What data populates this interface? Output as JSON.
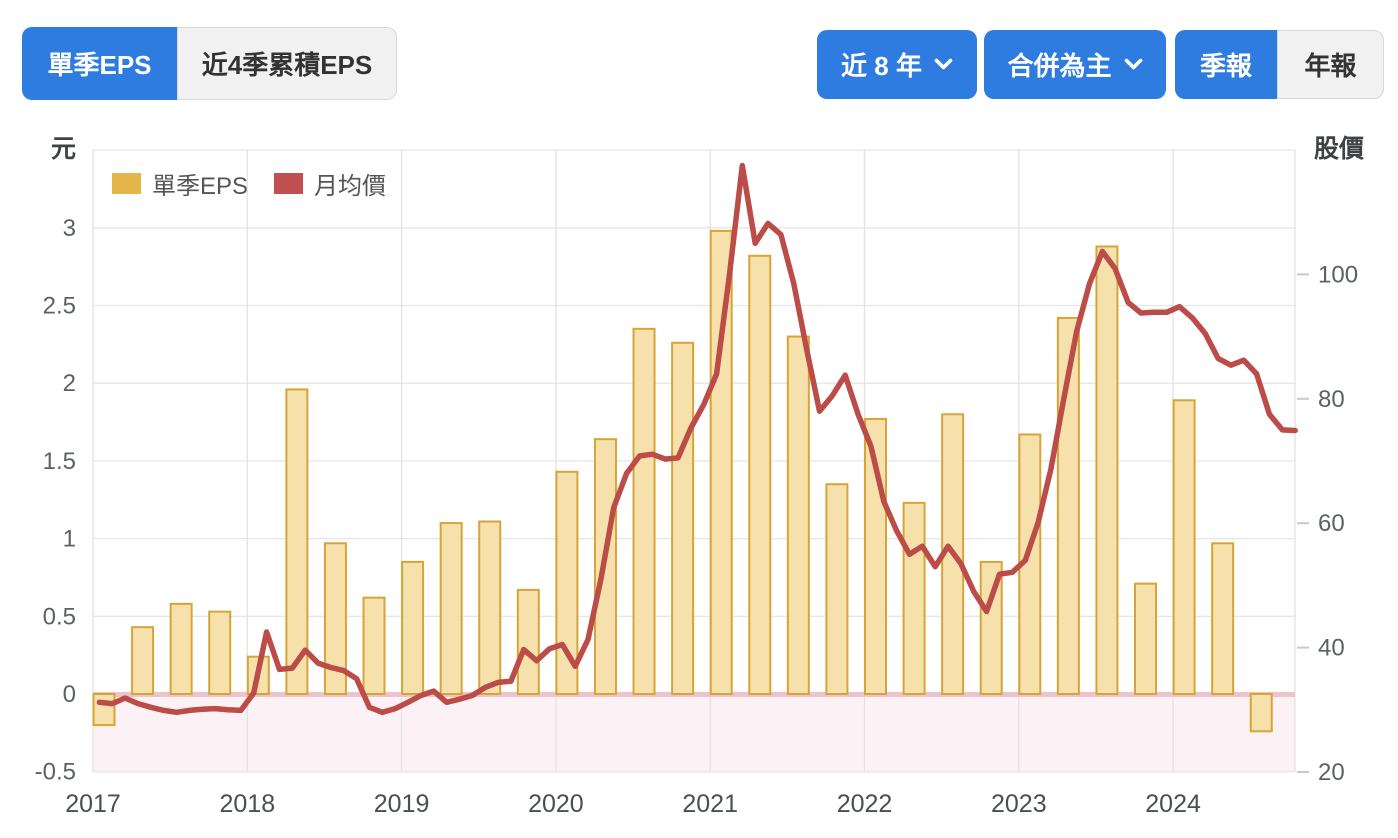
{
  "toolbar": {
    "eps_tab": "單季EPS",
    "cumulative_eps_tab": "近4季累積EPS",
    "range_select": "近 8 年",
    "statement_select": "合併為主",
    "quarterly_tab": "季報",
    "annual_tab": "年報"
  },
  "legend": {
    "bar_label": "單季EPS",
    "line_label": "月均價"
  },
  "axes": {
    "left_unit": "元",
    "right_unit": "股價",
    "left_ticks": [
      3,
      2.5,
      2,
      1.5,
      1,
      0.5,
      0,
      -0.5
    ],
    "right_ticks": [
      100,
      80,
      60,
      40,
      20
    ],
    "x_ticks": [
      "2017",
      "2018",
      "2019",
      "2020",
      "2021",
      "2022",
      "2023",
      "2024"
    ]
  },
  "colors": {
    "accent_blue": "#2e7ce0",
    "bar_fill": "#f6e1ad",
    "bar_border": "#d7a437",
    "line_red": "#bc4c48",
    "zero_line_pink": "#efc3cd",
    "negative_area_pink": "#fcf2f6",
    "grid": "#e6e6e6",
    "tick_text": "#5c6166"
  },
  "chart_data": [
    {
      "type": "bar",
      "name": "單季EPS",
      "yaxis": "left",
      "unit": "元",
      "ylim": [
        -0.5,
        3.5
      ],
      "categories": [
        "2017Q1",
        "2017Q2",
        "2017Q3",
        "2017Q4",
        "2018Q1",
        "2018Q2",
        "2018Q3",
        "2018Q4",
        "2019Q1",
        "2019Q2",
        "2019Q3",
        "2019Q4",
        "2020Q1",
        "2020Q2",
        "2020Q3",
        "2020Q4",
        "2021Q1",
        "2021Q2",
        "2021Q3",
        "2021Q4",
        "2022Q1",
        "2022Q2",
        "2022Q3",
        "2022Q4",
        "2023Q1",
        "2023Q2",
        "2023Q3",
        "2023Q4",
        "2024Q1",
        "2024Q2",
        "2024Q3"
      ],
      "values": [
        -0.2,
        0.43,
        0.58,
        0.53,
        0.24,
        1.96,
        0.97,
        0.62,
        0.85,
        1.1,
        1.11,
        0.67,
        1.43,
        1.64,
        2.35,
        2.26,
        2.98,
        2.82,
        2.3,
        1.35,
        1.77,
        1.23,
        1.8,
        0.85,
        1.67,
        2.42,
        2.88,
        0.71,
        1.89,
        0.97,
        -0.24
      ]
    },
    {
      "type": "line",
      "name": "月均價",
      "yaxis": "right",
      "unit": "股價",
      "ylim": [
        20,
        120
      ],
      "interval": "month",
      "x_start": "2017-01",
      "x_end": "2024-10",
      "values": [
        31.2,
        31.0,
        31.9,
        31.0,
        30.4,
        29.9,
        29.6,
        29.9,
        30.1,
        30.2,
        30.0,
        29.9,
        32.7,
        42.5,
        36.5,
        36.7,
        39.6,
        37.5,
        36.8,
        36.3,
        35.0,
        30.4,
        29.6,
        30.2,
        31.2,
        32.3,
        33.0,
        31.2,
        31.7,
        32.3,
        33.6,
        34.4,
        34.6,
        39.7,
        37.9,
        39.8,
        40.5,
        37.0,
        41.3,
        51.0,
        62.5,
        68.0,
        70.8,
        71.1,
        70.3,
        70.5,
        75.3,
        79.1,
        84.0,
        100.0,
        117.5,
        105.0,
        108.2,
        106.4,
        98.5,
        88.0,
        78.0,
        80.5,
        83.8,
        77.5,
        72.4,
        63.5,
        58.8,
        55.0,
        56.3,
        53.0,
        56.3,
        53.5,
        49.0,
        45.8,
        51.8,
        52.1,
        54.0,
        60.1,
        68.7,
        80.0,
        90.8,
        98.5,
        103.7,
        100.9,
        95.5,
        93.8,
        93.9,
        93.9,
        94.8,
        93.0,
        90.5,
        86.5,
        85.4,
        86.2,
        84.0,
        77.5,
        75.0,
        74.9
      ]
    }
  ]
}
